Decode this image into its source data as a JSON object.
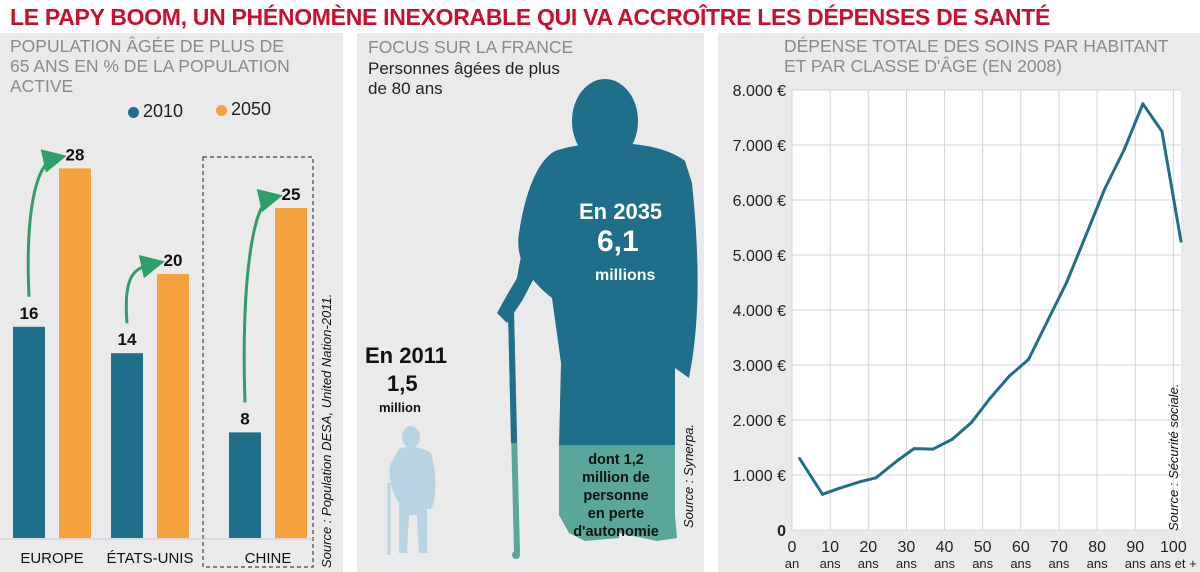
{
  "headline": "LE PAPY BOOM, UN PHÉNOMÈNE INEXORABLE QUI VA ACCROÎTRE LES DÉPENSES DE SANTÉ",
  "colors": {
    "y2010": "#1f6e8a",
    "y2050": "#f5a13d",
    "arrow": "#2e9e6b",
    "accent": "#c8102e",
    "line": "#1f6e8a",
    "dependency": "#5aa69a",
    "small_figure": "#b8d3e2"
  },
  "left": {
    "title_lines": [
      "POPULATION ÂGÉE DE PLUS DE",
      "65 ANS EN % DE LA POPULATION",
      "ACTIVE"
    ],
    "legend": [
      "2010",
      "2050"
    ],
    "source": "Source : Population DESA, United Nation-2011."
  },
  "middle": {
    "title": "FOCUS SUR LA FRANCE",
    "subtitle_lines": [
      "Personnes âgées de plus",
      "de 80 ans"
    ],
    "y2035": {
      "label": "En 2035",
      "value": "6,1",
      "unit": "millions"
    },
    "y2011": {
      "label": "En 2011",
      "value": "1,5",
      "unit": "million"
    },
    "dependency_lines": [
      "dont 1,2",
      "million de",
      "personne",
      "en perte",
      "d'autonomie"
    ],
    "source": "Source : Synerpa."
  },
  "right": {
    "title_lines": [
      "DÉPENSE TOTALE DES SOINS PAR HABITANT",
      "ET PAR CLASSE D'ÂGE (EN 2008)"
    ],
    "source": "Source : Sécurité sociale."
  },
  "chart_data": [
    {
      "type": "bar",
      "categories": [
        "EUROPE",
        "ÉTATS-UNIS",
        "CHINE"
      ],
      "series": [
        {
          "name": "2010",
          "values": [
            16,
            14,
            8
          ]
        },
        {
          "name": "2050",
          "values": [
            28,
            20,
            25
          ]
        }
      ],
      "highlighted_category": "CHINE",
      "ylim": [
        0,
        30
      ]
    },
    {
      "type": "line",
      "x": [
        2,
        8,
        12,
        18,
        22,
        28,
        32,
        37,
        42,
        47,
        52,
        57,
        62,
        67,
        72,
        77,
        82,
        87,
        92,
        97,
        102
      ],
      "values": [
        1300,
        650,
        750,
        880,
        950,
        1280,
        1480,
        1470,
        1650,
        1950,
        2400,
        2800,
        3100,
        3800,
        4500,
        5350,
        6200,
        6900,
        7750,
        7250,
        5250
      ],
      "xlim": [
        0,
        102
      ],
      "x_ticks": [
        0,
        10,
        20,
        30,
        40,
        50,
        60,
        70,
        80,
        90,
        100
      ],
      "x_tick_labels": [
        "0",
        "10",
        "20",
        "30",
        "40",
        "50",
        "60",
        "70",
        "80",
        "90",
        "100"
      ],
      "x_tick_units": [
        "an",
        "ans",
        "ans",
        "ans",
        "ans",
        "ans",
        "ans",
        "ans",
        "ans",
        "ans",
        "ans et +"
      ],
      "ylim": [
        0,
        8000
      ],
      "y_ticks": [
        0,
        1000,
        2000,
        3000,
        4000,
        5000,
        6000,
        7000,
        8000
      ],
      "y_tick_labels": [
        "0",
        "1.000 €",
        "2.000 €",
        "3.000 €",
        "4.000 €",
        "5.000 €",
        "6.000 €",
        "7.000 €",
        "8.000 €"
      ],
      "grid": true
    }
  ]
}
